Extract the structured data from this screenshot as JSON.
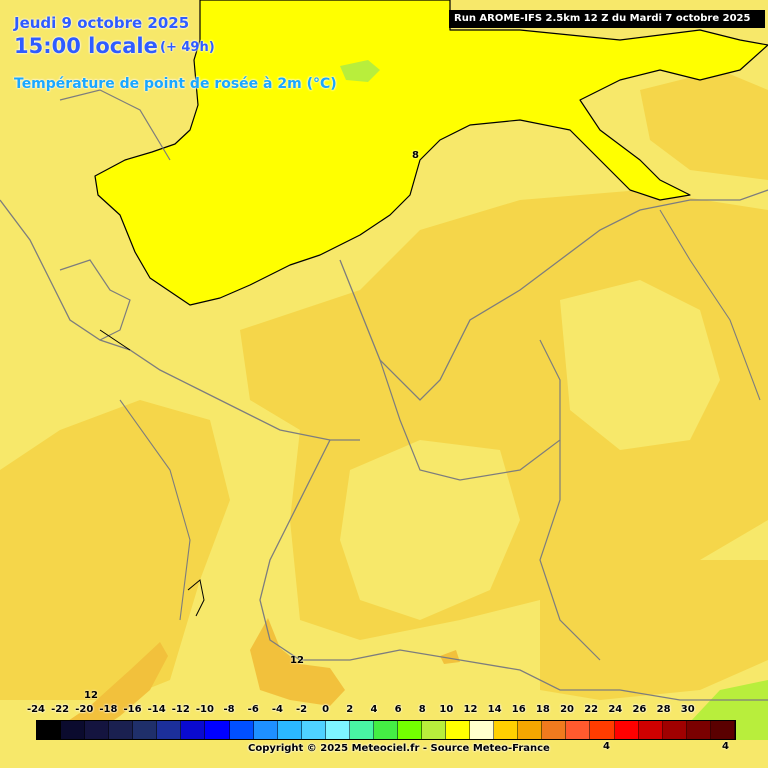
{
  "header": {
    "date": "Jeudi 9 octobre 2025",
    "time": "15:00 locale",
    "lead": "(+ 49h)",
    "parameter": "Température de point de rosée à 2m (°C)",
    "run": "Run AROME-IFS 2.5km 12 Z du Mardi 7 octobre 2025"
  },
  "colors": {
    "field_12": "#f2c13c",
    "field_10": "#f5d64a",
    "field_9": "#f7e86a",
    "field_8": "#ffff00",
    "field_7": "#b8ee3c",
    "borders": "#7d7d7d",
    "contour": "#000000",
    "title": "#2f5cff"
  },
  "isolines": {
    "label_8": "8",
    "label_12_a": "12",
    "label_12_b": "12",
    "label_4_a": "4",
    "label_4_b": "4"
  },
  "legend": {
    "ticks": [
      "-24",
      "-22",
      "-20",
      "-18",
      "-16",
      "-14",
      "-12",
      "-10",
      "-8",
      "-6",
      "-4",
      "-2",
      "0",
      "2",
      "4",
      "6",
      "8",
      "10",
      "12",
      "14",
      "16",
      "18",
      "20",
      "22",
      "24",
      "26",
      "28",
      "30"
    ],
    "colors": [
      "#000000",
      "#0b0b2e",
      "#14143f",
      "#1a2050",
      "#1f2f6a",
      "#1c2f9a",
      "#0a0ad0",
      "#0000ff",
      "#0050ff",
      "#1e90ff",
      "#2bb8ff",
      "#4fd2ff",
      "#7ef5ff",
      "#49f6a4",
      "#44ee44",
      "#73ff00",
      "#b8ee3c",
      "#ffff00",
      "#ffffcc",
      "#ffd000",
      "#f6a600",
      "#f07a1e",
      "#ff5a2e",
      "#ff3c00",
      "#ff0000",
      "#d00000",
      "#a00000",
      "#7a0000",
      "#5a0000"
    ]
  },
  "footer": {
    "copyright": "Copyright © 2025 Meteociel.fr - Source Meteo-France"
  }
}
